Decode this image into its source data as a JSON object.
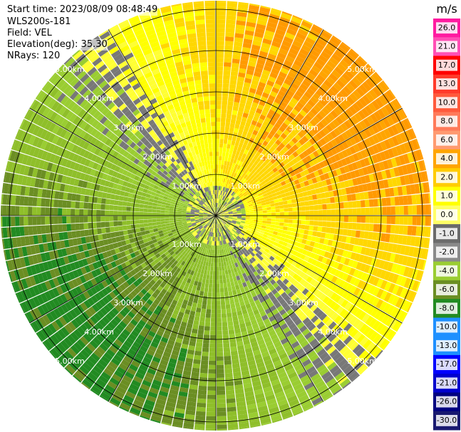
{
  "header": {
    "start_time": "Start time: 2023/08/09 08:48:49",
    "instrument": "WLS200s-181",
    "field": "Field: VEL",
    "elevation": "Elevation(deg): 35.30",
    "nrays": "NRays: 120"
  },
  "chart_data": {
    "type": "heatmap",
    "projection": "polar-ppi",
    "field": "VEL",
    "rays": 120,
    "range_ring_labels": [
      "1.00km",
      "2.00km",
      "3.00km",
      "4.00km",
      "5.00km"
    ],
    "max_range_km": 5.3,
    "colorbar": {
      "unit": "m/s",
      "ticks": [
        "26.0",
        "21.0",
        "17.0",
        "13.0",
        "10.0",
        "8.0",
        "6.0",
        "4.0",
        "2.0",
        "1.0",
        "0.0",
        "-1.0",
        "-2.0",
        "-4.0",
        "-6.0",
        "-8.0",
        "-10.0",
        "-13.0",
        "-17.0",
        "-21.0",
        "-26.0",
        "-30.0"
      ],
      "colors": [
        "#ff1aa0",
        "#ff4fb5",
        "#ff0000",
        "#ff3a2a",
        "#ff5a3c",
        "#ff7a5a",
        "#ff9a70",
        "#ffa500",
        "#ffcc00",
        "#ffff00",
        "#ffff66",
        "#6b6b6b",
        "#8a8a8a",
        "#9acd32",
        "#6b8e23",
        "#228b22",
        "#1e90ff",
        "#1e90ff",
        "#0000ff",
        "#0000cd",
        "#000080",
        "#191970"
      ]
    },
    "wind": {
      "description_only": true
    }
  }
}
